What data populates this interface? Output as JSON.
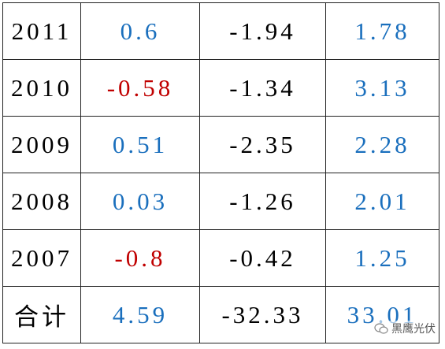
{
  "table": {
    "rows": [
      [
        "2011",
        "0.6",
        "-1.94",
        "1.78"
      ],
      [
        "2010",
        "-0.58",
        "-1.34",
        "3.13"
      ],
      [
        "2009",
        "0.51",
        "-2.35",
        "2.28"
      ],
      [
        "2008",
        "0.03",
        "-1.26",
        "2.01"
      ],
      [
        "2007",
        "-0.8",
        "-0.42",
        "1.25"
      ],
      [
        "合计",
        "4.59",
        "-32.33",
        "33.01"
      ]
    ]
  },
  "watermark": "黑鹰光伏"
}
